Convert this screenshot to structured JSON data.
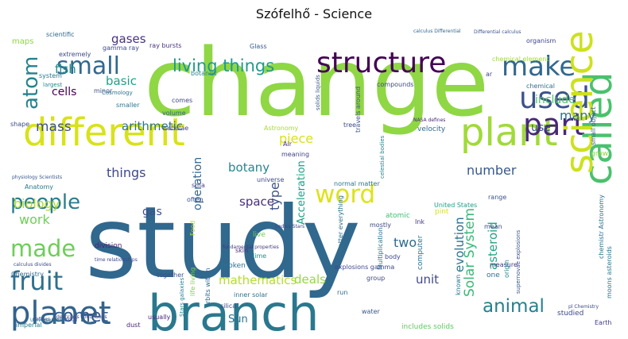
{
  "title": "Szófelhő - Science",
  "words": [
    {
      "text": "change",
      "color": "#8fd744"
    },
    {
      "text": "study",
      "color": "#31688e"
    },
    {
      "text": "branch",
      "color": "#2a788e"
    },
    {
      "text": "structure",
      "color": "#440154"
    },
    {
      "text": "different",
      "color": "#d8e219"
    },
    {
      "text": "plant",
      "color": "#a0da39"
    },
    {
      "text": "used",
      "color": "#3b528b"
    },
    {
      "text": "part",
      "color": "#482878"
    },
    {
      "text": "make",
      "color": "#31688e"
    },
    {
      "text": "called",
      "color": "#4ac16d"
    },
    {
      "text": "science",
      "color": "#cde11d"
    },
    {
      "text": "word",
      "color": "#dde318"
    },
    {
      "text": "people",
      "color": "#287c8e"
    },
    {
      "text": "made",
      "color": "#6ece58"
    },
    {
      "text": "fruit",
      "color": "#2d708e"
    },
    {
      "text": "planet",
      "color": "#33638d"
    },
    {
      "text": "comet",
      "color": "#365c8d"
    },
    {
      "text": "animal",
      "color": "#277f8e"
    },
    {
      "text": "small",
      "color": "#31688e"
    },
    {
      "text": "atom",
      "color": "#26828e"
    },
    {
      "text": "living things",
      "color": "#1f9a8a"
    },
    {
      "text": "mass",
      "color": "#3b528b"
    },
    {
      "text": "cells",
      "color": "#440154"
    },
    {
      "text": "fish",
      "color": "#21908d"
    },
    {
      "text": "gases",
      "color": "#46337e"
    },
    {
      "text": "basic",
      "color": "#1fa287"
    },
    {
      "text": "arithmetic",
      "color": "#2c728e"
    },
    {
      "text": "things",
      "color": "#3e4989"
    },
    {
      "text": "biology",
      "color": "#addc30"
    },
    {
      "text": "work",
      "color": "#6ece58"
    },
    {
      "text": "gas",
      "color": "#3b528b"
    },
    {
      "text": "botany",
      "color": "#25858e"
    },
    {
      "text": "operation",
      "color": "#32658e"
    },
    {
      "text": "space",
      "color": "#472f7d"
    },
    {
      "text": "piece",
      "color": "#d8e219"
    },
    {
      "text": "type",
      "color": "#3b528b"
    },
    {
      "text": "Acceleration",
      "color": "#1f9e89"
    },
    {
      "text": "number",
      "color": "#38588c"
    },
    {
      "text": "evolution",
      "color": "#2c728e"
    },
    {
      "text": "Solar System",
      "color": "#38b977"
    },
    {
      "text": "asteroid",
      "color": "#20a486"
    },
    {
      "text": "mathematics",
      "color": "#b5de2b"
    },
    {
      "text": "deals",
      "color": "#95d840"
    },
    {
      "text": "unit",
      "color": "#3e4989"
    },
    {
      "text": "two",
      "color": "#306a8e"
    },
    {
      "text": "many",
      "color": "#2e6f8e"
    },
    {
      "text": "include",
      "color": "#52c569"
    },
    {
      "text": "use",
      "color": "#3d4d8a"
    },
    {
      "text": "Sun",
      "color": "#2c728e"
    },
    {
      "text": "scientific",
      "color": "#30688e"
    },
    {
      "text": "maps",
      "color": "#8fd744"
    },
    {
      "text": "extremely",
      "color": "#3e4989"
    },
    {
      "text": "system",
      "color": "#2a788e"
    },
    {
      "text": "largest",
      "color": "#238a8d"
    },
    {
      "text": "gamma ray",
      "color": "#3e4a89"
    },
    {
      "text": "ray bursts",
      "color": "#46327e"
    },
    {
      "text": "Glass",
      "color": "#365c8d"
    },
    {
      "text": "minor",
      "color": "#3b528b"
    },
    {
      "text": "Cosmology",
      "color": "#2a788e"
    },
    {
      "text": "botanist",
      "color": "#26828e"
    },
    {
      "text": "comes",
      "color": "#3f4788"
    },
    {
      "text": "smaller",
      "color": "#2a788e"
    },
    {
      "text": "volume",
      "color": "#33638d"
    },
    {
      "text": "nebulae",
      "color": "#433e85"
    },
    {
      "text": "Astronomy",
      "color": "#a8db34"
    },
    {
      "text": "tree",
      "color": "#3e4989"
    },
    {
      "text": "meaning",
      "color": "#414487"
    },
    {
      "text": "Air",
      "color": "#472d7b"
    },
    {
      "text": "velocity",
      "color": "#31688e"
    },
    {
      "text": "grow",
      "color": "#8fd744"
    },
    {
      "text": "United States",
      "color": "#1f9e89"
    },
    {
      "text": "range",
      "color": "#3b528b"
    },
    {
      "text": "pint",
      "color": "#d8e219"
    },
    {
      "text": "Ink",
      "color": "#453781"
    },
    {
      "text": "mean",
      "color": "#3e4989"
    },
    {
      "text": "chemical element",
      "color": "#a0da39"
    },
    {
      "text": "chemical",
      "color": "#2d718e"
    },
    {
      "text": "organism",
      "color": "#404688"
    },
    {
      "text": "compounds",
      "color": "#3e4989"
    },
    {
      "text": "travels around",
      "color": "#3b528b"
    },
    {
      "text": "small object",
      "color": "#33638d"
    },
    {
      "text": "moons asteroids",
      "color": "#2a788e"
    },
    {
      "text": "Anatomy",
      "color": "#2a788e"
    },
    {
      "text": "shape",
      "color": "#3e4989"
    },
    {
      "text": "division",
      "color": "#482475"
    },
    {
      "text": "Chemistry",
      "color": "#32648e"
    },
    {
      "text": "together",
      "color": "#3b528b"
    },
    {
      "text": "skin",
      "color": "#46327e"
    },
    {
      "text": "broken",
      "color": "#2d718e"
    },
    {
      "text": "lime",
      "color": "#21918c"
    },
    {
      "text": "live",
      "color": "#6ece58"
    },
    {
      "text": "body",
      "color": "#3e4989"
    },
    {
      "text": "atomic",
      "color": "#3fbc73"
    },
    {
      "text": "Multiplication",
      "color": "#2c728e"
    },
    {
      "text": "explosions gamma",
      "color": "#3e4989"
    },
    {
      "text": "inner solar",
      "color": "#2d708e"
    },
    {
      "text": "silica",
      "color": "#3e4989"
    },
    {
      "text": "usually",
      "color": "#482878"
    },
    {
      "text": "imperial",
      "color": "#287d8e"
    },
    {
      "text": "dust",
      "color": "#482173"
    },
    {
      "text": "water",
      "color": "#39568c"
    },
    {
      "text": "group",
      "color": "#3e4989"
    },
    {
      "text": "run",
      "color": "#31688e"
    },
    {
      "text": "mostly",
      "color": "#414487"
    },
    {
      "text": "one",
      "color": "#2d708e"
    },
    {
      "text": "measure",
      "color": "#453781"
    },
    {
      "text": "known",
      "color": "#2a788e"
    },
    {
      "text": "studied",
      "color": "#3e4989"
    },
    {
      "text": "Earth",
      "color": "#433e85"
    },
    {
      "text": "includes solids",
      "color": "#5ec962"
    },
    {
      "text": "origin",
      "color": "#26828e"
    },
    {
      "text": "universe",
      "color": "#3e4989"
    },
    {
      "text": "matter everything",
      "color": "#2d718e"
    },
    {
      "text": "normal matter",
      "color": "#2a788e"
    },
    {
      "text": "Stars galaxies",
      "color": "#26828e"
    },
    {
      "text": "life living",
      "color": "#7ad151"
    },
    {
      "text": "often",
      "color": "#3b528b"
    },
    {
      "text": "Food",
      "color": "#addc30"
    },
    {
      "text": "orbits within",
      "color": "#31688e"
    },
    {
      "text": "computer",
      "color": "#2c728e"
    },
    {
      "text": "supernovae explosions",
      "color": "#3b528b"
    },
    {
      "text": "celestial bodies",
      "color": "#26828e"
    },
    {
      "text": "solids liquids",
      "color": "#38598c"
    },
    {
      "text": "sma",
      "color": "#3e4989"
    },
    {
      "text": "ar",
      "color": "#3e4989"
    },
    {
      "text": "Differential calculus",
      "color": "#3b528b"
    },
    {
      "text": "calculus Differential",
      "color": "#31688e"
    },
    {
      "text": "defines cosmology",
      "color": "#3e4989"
    },
    {
      "text": "physiology Scientists",
      "color": "#39568c"
    },
    {
      "text": "fundamental properties",
      "color": "#453781"
    },
    {
      "text": "time relationships",
      "color": "#3e4989"
    },
    {
      "text": "describes continuous",
      "color": "#3e4989"
    },
    {
      "text": "calculus divides",
      "color": "#3e4989"
    },
    {
      "text": "Universe NASA",
      "color": "#2a788e"
    },
    {
      "text": "bodies Stars",
      "color": "#3e4989"
    },
    {
      "text": "NASA defines",
      "color": "#482878"
    },
    {
      "text": "pl Chemistry",
      "color": "#3e4989"
    },
    {
      "text": "chemistr Astronomy",
      "color": "#2c728e"
    }
  ]
}
